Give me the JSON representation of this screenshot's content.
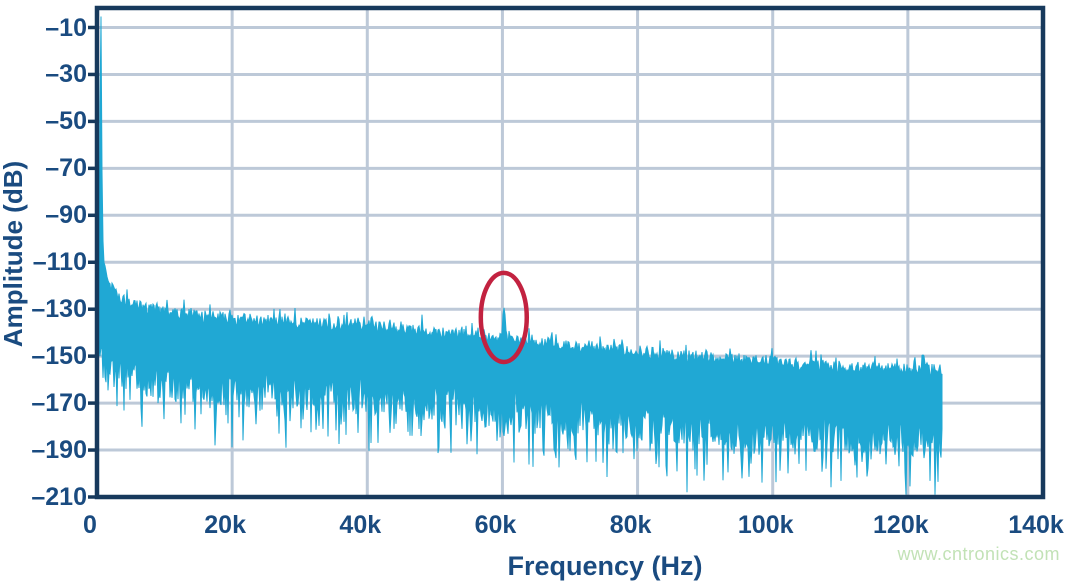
{
  "watermark": {
    "text": "www.cntronics.com",
    "color": "#c2e2b6"
  },
  "chart_data": {
    "type": "area",
    "title": "",
    "xlabel": "Frequency (Hz)",
    "ylabel": "Amplitude (dB)",
    "x_range_hz": [
      0,
      140000
    ],
    "y_range_db": [
      -210,
      0
    ],
    "grid": true,
    "legend": false,
    "x_ticks": [
      {
        "value": 0,
        "label": "0"
      },
      {
        "value": 20000,
        "label": "20k"
      },
      {
        "value": 40000,
        "label": "40k"
      },
      {
        "value": 60000,
        "label": "60k"
      },
      {
        "value": 80000,
        "label": "80k"
      },
      {
        "value": 100000,
        "label": "100k"
      },
      {
        "value": 120000,
        "label": "120k"
      },
      {
        "value": 140000,
        "label": "140k"
      }
    ],
    "y_ticks": [
      {
        "value": -10,
        "label": "–10"
      },
      {
        "value": -30,
        "label": "–30"
      },
      {
        "value": -50,
        "label": "–50"
      },
      {
        "value": -70,
        "label": "–70"
      },
      {
        "value": -90,
        "label": "–90"
      },
      {
        "value": -110,
        "label": "–110"
      },
      {
        "value": -130,
        "label": "–130"
      },
      {
        "value": -150,
        "label": "–150"
      },
      {
        "value": -170,
        "label": "–170"
      },
      {
        "value": -190,
        "label": "–190"
      },
      {
        "value": -210,
        "label": "–210"
      }
    ],
    "data_max_hz": 125000,
    "dc_peak": {
      "freq_hz": 560,
      "amplitude_db": -4
    },
    "spur": {
      "freq_hz": 60200,
      "amplitude_db": -128
    },
    "top_envelope": {
      "freqs_hz": [
        0,
        250,
        380,
        500,
        530,
        600,
        660,
        760,
        880,
        1000,
        1300,
        1700,
        2200,
        3000,
        4000,
        5000,
        7000,
        10000,
        15000,
        20000,
        25000,
        30000,
        35000,
        40000,
        45000,
        50000,
        55000,
        58500,
        59800,
        60200,
        60650,
        63000,
        66000,
        70000,
        75000,
        80000,
        85000,
        90000,
        95000,
        100000,
        105000,
        110000,
        115000,
        120000,
        125000
      ],
      "db": [
        -121,
        -121,
        -70,
        -20,
        -5,
        -5,
        -35,
        -80,
        -101,
        -109,
        -114,
        -118,
        -121,
        -124.5,
        -126.5,
        -128,
        -129.5,
        -131,
        -133,
        -134,
        -135,
        -136,
        -136.5,
        -137,
        -138.5,
        -140,
        -141,
        -142,
        -143,
        -128,
        -143,
        -143,
        -144,
        -145,
        -146.5,
        -148,
        -149.5,
        -150.5,
        -151.5,
        -152.5,
        -153.5,
        -154.5,
        -155,
        -155.5,
        -156
      ]
    },
    "floor_envelope": {
      "freqs_hz": [
        0,
        2500,
        5000,
        10000,
        20000,
        30000,
        40000,
        50000,
        60000,
        70000,
        80000,
        90000,
        100000,
        110000,
        120000,
        125000
      ],
      "db": [
        -121,
        -123,
        -128,
        -131,
        -134,
        -136,
        -137,
        -140,
        -142.5,
        -145,
        -148,
        -150.5,
        -152.5,
        -154.5,
        -155.5,
        -156
      ]
    },
    "deep_notches": {
      "freqs_hz": [
        6500,
        9000,
        13000,
        17500,
        21000,
        23500,
        27000,
        30500,
        33500,
        36500,
        40500,
        44000,
        48000,
        51000,
        54000,
        57500,
        63500,
        66000,
        69500,
        73500,
        77000,
        80500,
        83500,
        87300,
        89800,
        94000,
        98000,
        101500,
        104500,
        108000,
        111500,
        114500,
        118000,
        121000,
        123500
      ],
      "db": [
        -172,
        -170,
        -175,
        -188,
        -176,
        -179,
        -183,
        -177,
        -181,
        -178,
        -187,
        -181,
        -184,
        -178,
        -181,
        -180,
        -181,
        -190,
        -184,
        -181,
        -191,
        -185,
        -183,
        -208,
        -203,
        -190,
        -192,
        -186,
        -184,
        -188,
        -190,
        -194,
        -188,
        -190,
        -187
      ]
    },
    "annotation_ellipse": {
      "center_freq_hz": 60200,
      "center_db": -133.5,
      "radius_hz": 3400,
      "radius_db": 19,
      "color": "#c22240"
    },
    "noise": {
      "seed": 20,
      "top_jitter_db": 2.6,
      "band_depth_db": [
        22,
        38
      ],
      "spike_prob": 0.2,
      "spike_extra_db": [
        6,
        20
      ]
    },
    "colors": {
      "trace": "#20a8d4",
      "frame": "#17395c",
      "grid": "#bdc9d8",
      "labels": "#1a4b80",
      "background": "#ffffff"
    }
  }
}
